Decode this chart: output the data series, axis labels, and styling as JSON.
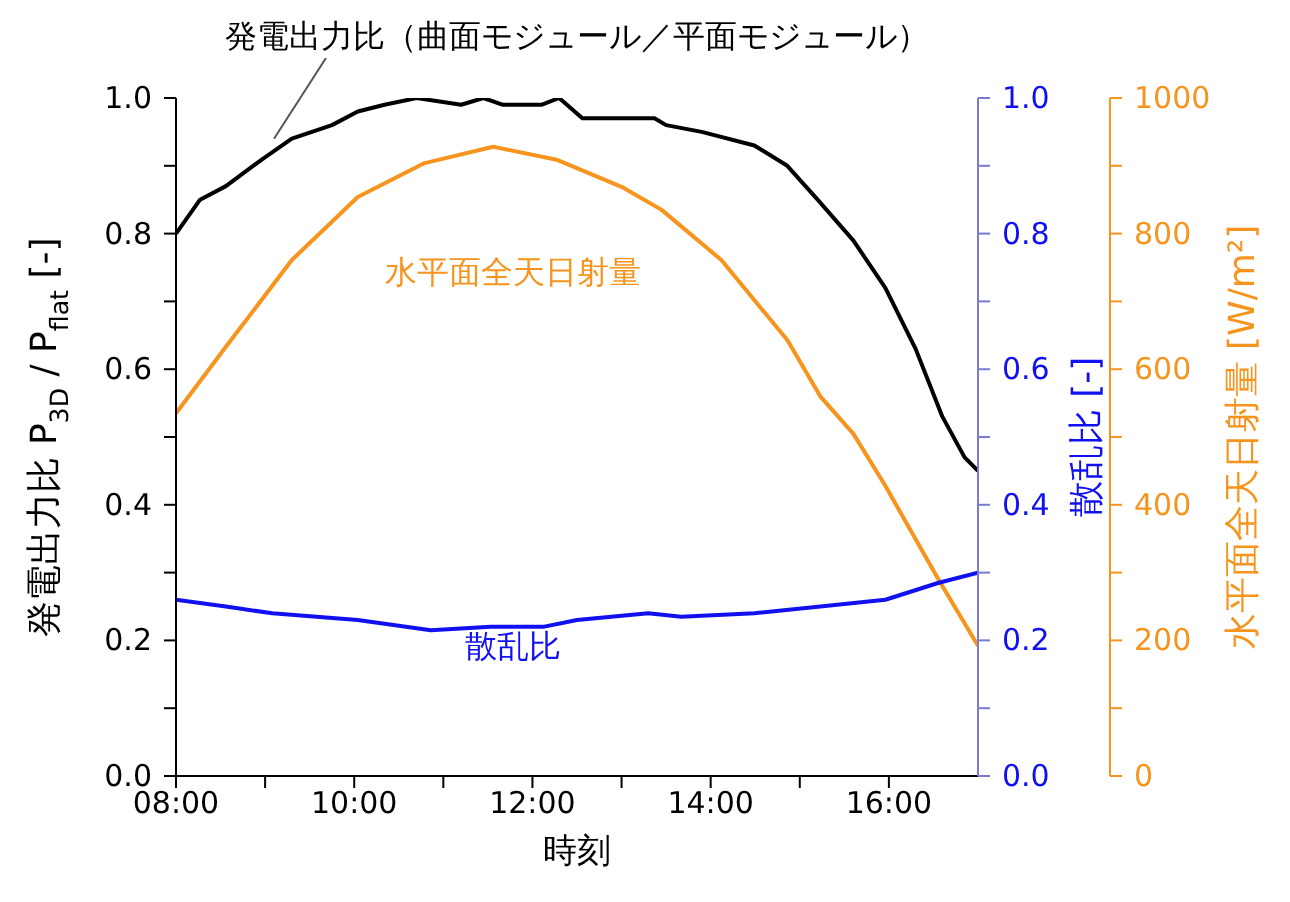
{
  "chart_data": {
    "type": "line",
    "xlabel": "時刻",
    "ylabel": "発電出力比  P$_{3D}$ / P$_{flat}$ [-]",
    "y2label": "散乱比 [-]",
    "y3label": "水平面全天日射量 [W/m²]",
    "xlim": [
      8,
      17
    ],
    "xticks": [
      {
        "value": 8,
        "label": "08:00"
      },
      {
        "value": 9,
        "label": null
      },
      {
        "value": 10,
        "label": "10:00"
      },
      {
        "value": 11,
        "label": null
      },
      {
        "value": 12,
        "label": "12:00"
      },
      {
        "value": 13,
        "label": null
      },
      {
        "value": 14,
        "label": "14:00"
      },
      {
        "value": 15,
        "label": null
      },
      {
        "value": 16,
        "label": "16:00"
      }
    ],
    "ylim": [
      0,
      1
    ],
    "yticks": [
      {
        "value": 0,
        "label": "0.0"
      },
      {
        "value": 0.1,
        "label": null
      },
      {
        "value": 0.2,
        "label": "0.2"
      },
      {
        "value": 0.3,
        "label": null
      },
      {
        "value": 0.4,
        "label": "0.4"
      },
      {
        "value": 0.5,
        "label": null
      },
      {
        "value": 0.6,
        "label": "0.6"
      },
      {
        "value": 0.7,
        "label": null
      },
      {
        "value": 0.8,
        "label": "0.8"
      },
      {
        "value": 0.9,
        "label": null
      },
      {
        "value": 1,
        "label": "1.0"
      }
    ],
    "y2lim": [
      0,
      1
    ],
    "y2ticks": [
      {
        "value": 0,
        "label": "0.0"
      },
      {
        "value": 0.1,
        "label": null
      },
      {
        "value": 0.2,
        "label": "0.2"
      },
      {
        "value": 0.3,
        "label": null
      },
      {
        "value": 0.4,
        "label": "0.4"
      },
      {
        "value": 0.5,
        "label": null
      },
      {
        "value": 0.6,
        "label": "0.6"
      },
      {
        "value": 0.7,
        "label": null
      },
      {
        "value": 0.8,
        "label": "0.8"
      },
      {
        "value": 0.9,
        "label": null
      },
      {
        "value": 1,
        "label": "1.0"
      }
    ],
    "y3lim": [
      0,
      1000
    ],
    "y3ticks": [
      0,
      {
        "value": 100,
        "label": null
      },
      200,
      {
        "value": 300,
        "label": null
      },
      400,
      {
        "value": 500,
        "label": null
      },
      600,
      {
        "value": 700,
        "label": null
      },
      800,
      {
        "value": 900,
        "label": null
      },
      1000
    ],
    "series": [
      {
        "name": "発電出力比（曲面モジュール／平面モジュール）",
        "axis": "y",
        "color": "#000000",
        "x": [
          8,
          8.27,
          8.56,
          8.97,
          9.3,
          9.75,
          10.04,
          10.34,
          10.7,
          11.2,
          11.45,
          11.67,
          12.1,
          12.3,
          12.56,
          13.37,
          13.5,
          13.9,
          14.49,
          14.86,
          15.2,
          15.6,
          15.96,
          16.3,
          16.6,
          16.85,
          17
        ],
        "values": [
          0.8,
          0.85,
          0.87,
          0.91,
          0.94,
          0.96,
          0.98,
          0.99,
          1.0,
          0.99,
          1.0,
          0.99,
          0.99,
          1.0,
          0.97,
          0.97,
          0.96,
          0.95,
          0.93,
          0.9,
          0.85,
          0.79,
          0.72,
          0.63,
          0.53,
          0.47,
          0.45
        ]
      },
      {
        "name": "水平面全天日射量",
        "axis": "y3",
        "color": "#f7941d",
        "x": [
          8,
          8.56,
          9.3,
          10.04,
          10.79,
          11.56,
          12.27,
          13.0,
          13.45,
          14.12,
          14.86,
          15.23,
          15.6,
          15.96,
          16.56,
          17
        ],
        "values": [
          535,
          633,
          761,
          854,
          904,
          928,
          909,
          869,
          835,
          761,
          643,
          560,
          505,
          428,
          289,
          192
        ]
      },
      {
        "name": "散乱比",
        "axis": "y2",
        "color": "#1010f0",
        "x": [
          8,
          8.56,
          9.08,
          10.04,
          10.86,
          11.53,
          12.12,
          12.5,
          13.3,
          13.67,
          14.49,
          15.23,
          15.96,
          16.56,
          17
        ],
        "values": [
          0.26,
          0.25,
          0.24,
          0.23,
          0.215,
          0.22,
          0.22,
          0.23,
          0.24,
          0.235,
          0.24,
          0.25,
          0.26,
          0.285,
          0.3
        ]
      }
    ]
  }
}
